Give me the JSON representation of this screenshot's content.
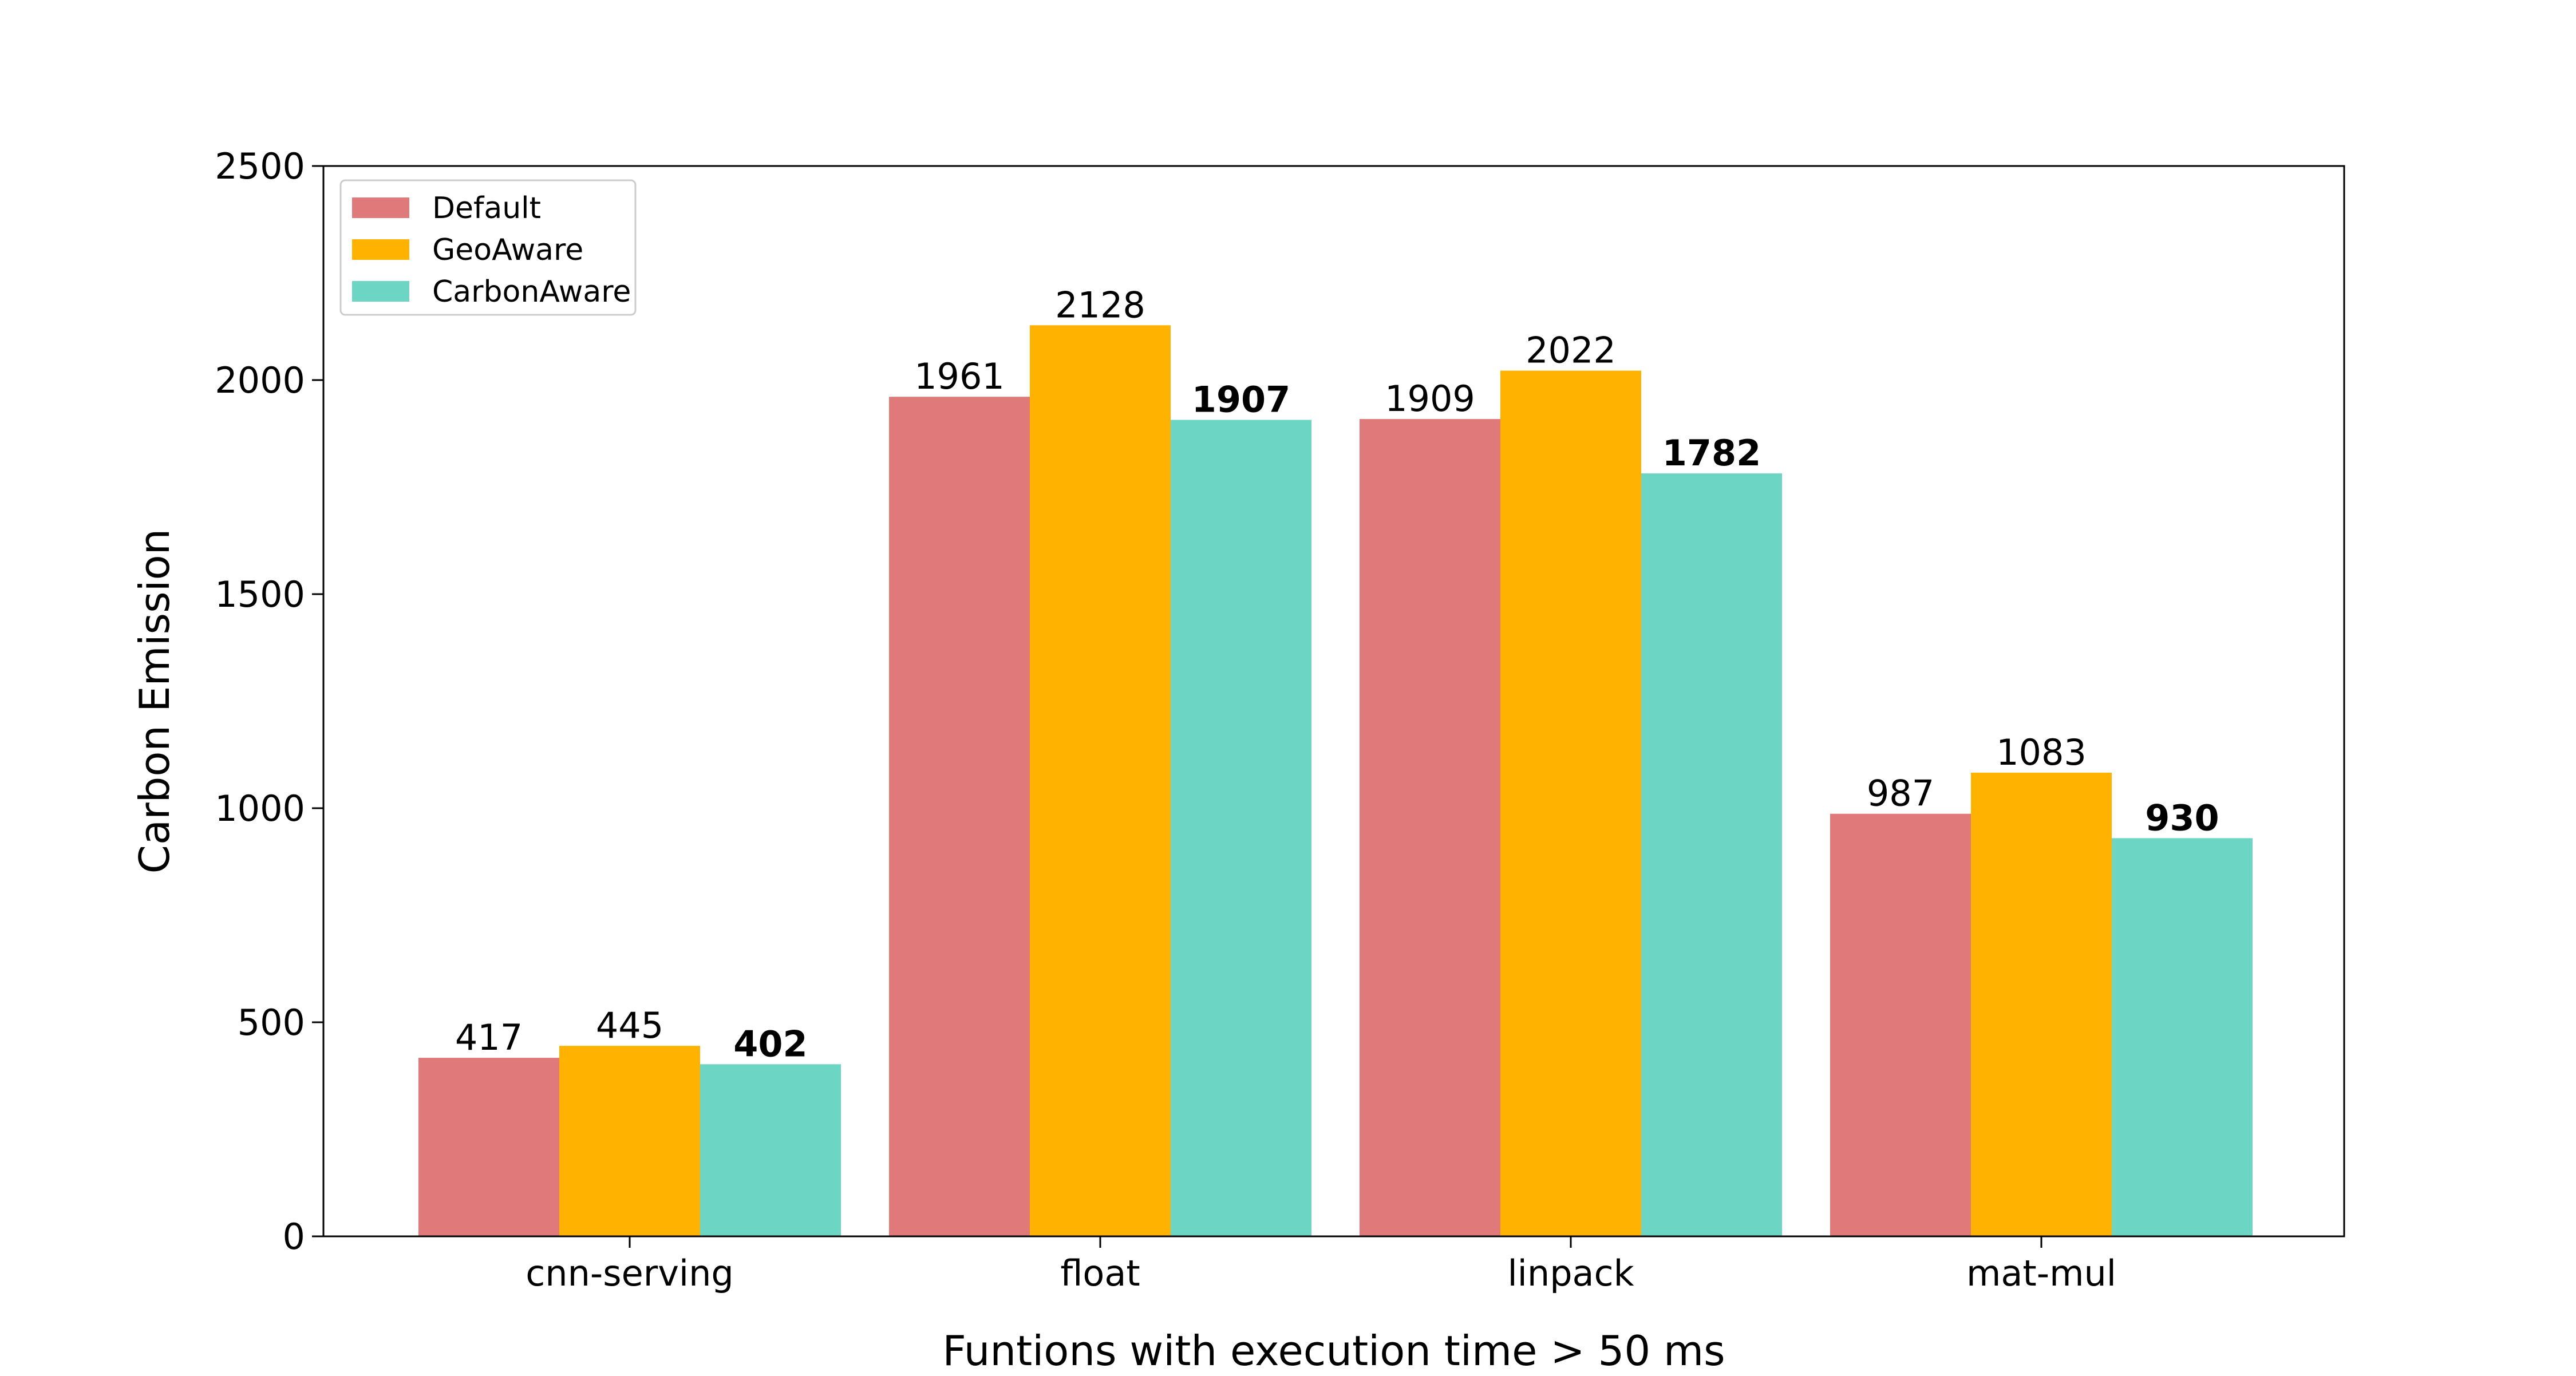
{
  "chart_data": {
    "type": "bar",
    "categories": [
      "cnn-serving",
      "float",
      "linpack",
      "mat-mul"
    ],
    "series": [
      {
        "name": "Default",
        "values": [
          417,
          1961,
          1909,
          987
        ],
        "color": "#E07A7A"
      },
      {
        "name": "GeoAware",
        "values": [
          445,
          2128,
          2022,
          1083
        ],
        "color": "#FFB300"
      },
      {
        "name": "CarbonAware",
        "values": [
          402,
          1907,
          1782,
          930
        ],
        "color": "#6DD5C4"
      }
    ],
    "bold_series": "CarbonAware",
    "title": "",
    "xlabel": "Funtions with execution time > 50 ms",
    "ylabel": "Carbon Emission",
    "ylim": [
      0,
      2500
    ],
    "yticks": [
      0,
      500,
      1000,
      1500,
      2000,
      2500
    ],
    "grid": false,
    "legend_position": "top-left"
  }
}
